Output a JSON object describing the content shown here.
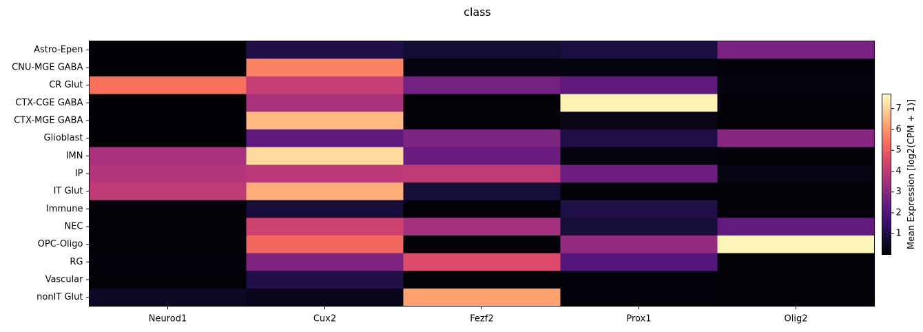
{
  "chart_data": {
    "type": "heatmap",
    "title": "class",
    "xlabel": "",
    "ylabel": "",
    "x_categories": [
      "Neurod1",
      "Cux2",
      "Fezf2",
      "Prox1",
      "Olig2"
    ],
    "y_categories": [
      "Astro-Epen",
      "CNU-MGE GABA",
      "CR Glut",
      "CTX-CGE GABA",
      "CTX-MGE GABA",
      "Glioblast",
      "IMN",
      "IP",
      "IT Glut",
      "Immune",
      "NEC",
      "OPC-Oligo",
      "RG",
      "Vascular",
      "nonIT Glut"
    ],
    "values": [
      [
        0.0,
        1.0,
        0.7,
        0.9,
        2.7
      ],
      [
        0.0,
        5.7,
        0.15,
        0.15,
        0.1
      ],
      [
        5.4,
        4.1,
        2.6,
        2.2,
        0.15
      ],
      [
        0.0,
        3.6,
        0.05,
        7.5,
        0.05
      ],
      [
        0.0,
        6.6,
        0.05,
        0.3,
        0.05
      ],
      [
        0.0,
        2.2,
        2.8,
        1.0,
        3.0
      ],
      [
        3.6,
        7.1,
        2.4,
        0.15,
        0.05
      ],
      [
        3.8,
        3.9,
        4.0,
        2.5,
        0.2
      ],
      [
        4.0,
        6.4,
        0.8,
        0.05,
        0.05
      ],
      [
        0.05,
        0.8,
        0.05,
        1.0,
        0.05
      ],
      [
        0.05,
        4.3,
        3.5,
        0.8,
        2.3
      ],
      [
        0.05,
        5.2,
        0.05,
        3.2,
        7.6
      ],
      [
        0.1,
        2.8,
        4.6,
        2.0,
        0.05
      ],
      [
        0.05,
        1.0,
        0.05,
        0.1,
        0.05
      ],
      [
        0.5,
        0.35,
        6.2,
        0.1,
        0.05
      ]
    ],
    "vmin": 0,
    "vmax": 7.7,
    "colormap": "magma",
    "colorbar": {
      "label": "Mean Expression [log2(CPM + 1)]",
      "ticks": [
        1,
        2,
        3,
        4,
        5,
        6,
        7
      ]
    },
    "grid": false
  }
}
